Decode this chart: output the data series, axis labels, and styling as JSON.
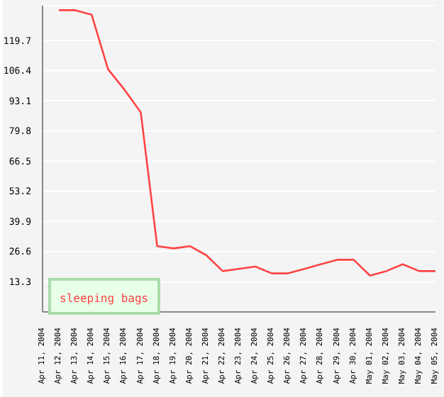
{
  "chart_data": {
    "type": "line",
    "categories": [
      "Apr 11, 2004",
      "Apr 12, 2004",
      "Apr 13, 2004",
      "Apr 14, 2004",
      "Apr 15, 2004",
      "Apr 16, 2004",
      "Apr 17, 2004",
      "Apr 18, 2004",
      "Apr 19, 2004",
      "Apr 20, 2004",
      "Apr 21, 2004",
      "Apr 22, 2004",
      "Apr 23, 2004",
      "Apr 24, 2004",
      "Apr 25, 2004",
      "Apr 26, 2004",
      "Apr 27, 2004",
      "Apr 28, 2004",
      "Apr 29, 2004",
      "Apr 30, 2004",
      "May 01, 2004",
      "May 02, 2004",
      "May 03, 2004",
      "May 04, 2004",
      "May 05, 2004"
    ],
    "series": [
      {
        "name": "sleeping bags",
        "color": "#ff4444",
        "values": [
          null,
          133,
          133,
          131,
          107,
          98,
          88,
          29,
          28,
          29,
          25,
          18,
          19,
          20,
          17,
          17,
          19,
          21,
          23,
          23,
          16,
          18,
          21,
          18,
          18
        ]
      }
    ],
    "ylim": [
      0,
      135
    ],
    "yticks": [
      13.3,
      26.6,
      39.9,
      53.2,
      66.5,
      79.8,
      93.1,
      106.4,
      119.7
    ],
    "grid": "y",
    "legend": "bottom",
    "marker": "none",
    "line_style": "solid"
  }
}
